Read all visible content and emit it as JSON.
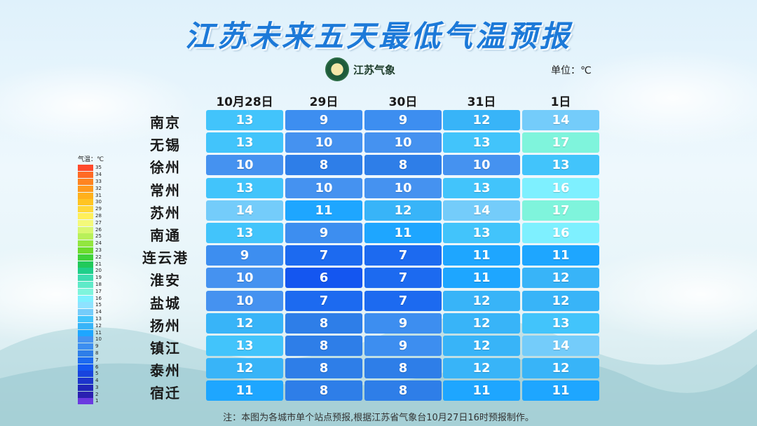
{
  "title": "江苏未来五天最低气温预报",
  "logo_text": "江苏气象",
  "unit_label": "单位：℃",
  "columns": [
    "10月28日",
    "29日",
    "30日",
    "31日",
    "1日"
  ],
  "rows": [
    {
      "city": "南京",
      "values": [
        13,
        9,
        9,
        12,
        14
      ]
    },
    {
      "city": "无锡",
      "values": [
        13,
        10,
        10,
        13,
        17
      ]
    },
    {
      "city": "徐州",
      "values": [
        10,
        8,
        8,
        10,
        13
      ]
    },
    {
      "city": "常州",
      "values": [
        13,
        10,
        10,
        13,
        16
      ]
    },
    {
      "city": "苏州",
      "values": [
        14,
        11,
        12,
        14,
        17
      ]
    },
    {
      "city": "南通",
      "values": [
        13,
        9,
        11,
        13,
        16
      ]
    },
    {
      "city": "连云港",
      "values": [
        9,
        7,
        7,
        11,
        11
      ]
    },
    {
      "city": "淮安",
      "values": [
        10,
        6,
        7,
        11,
        12
      ]
    },
    {
      "city": "盐城",
      "values": [
        10,
        7,
        7,
        12,
        12
      ]
    },
    {
      "city": "扬州",
      "values": [
        12,
        8,
        9,
        12,
        13
      ]
    },
    {
      "city": "镇江",
      "values": [
        13,
        8,
        9,
        12,
        14
      ]
    },
    {
      "city": "泰州",
      "values": [
        12,
        8,
        8,
        12,
        12
      ]
    },
    {
      "city": "宿迁",
      "values": [
        11,
        8,
        8,
        11,
        11
      ]
    }
  ],
  "legend": {
    "title": "气温：℃",
    "items": [
      {
        "value": 35,
        "color": "#ff4a2c"
      },
      {
        "value": 34,
        "color": "#ff6a24"
      },
      {
        "value": 33,
        "color": "#ff8420"
      },
      {
        "value": 32,
        "color": "#ff9a1e"
      },
      {
        "value": 31,
        "color": "#ffb01c"
      },
      {
        "value": 30,
        "color": "#ffc422"
      },
      {
        "value": 29,
        "color": "#ffd83a"
      },
      {
        "value": 28,
        "color": "#fff05a"
      },
      {
        "value": 27,
        "color": "#f4f97a"
      },
      {
        "value": 26,
        "color": "#d8f770"
      },
      {
        "value": 25,
        "color": "#b8f05a"
      },
      {
        "value": 24,
        "color": "#92e640"
      },
      {
        "value": 23,
        "color": "#6cdc2c"
      },
      {
        "value": 22,
        "color": "#3fd23a"
      },
      {
        "value": 21,
        "color": "#22c95a"
      },
      {
        "value": 20,
        "color": "#1fcf8a"
      },
      {
        "value": 19,
        "color": "#3ddcb0"
      },
      {
        "value": 18,
        "color": "#5eeac8"
      },
      {
        "value": 17,
        "color": "#7ff4dc"
      },
      {
        "value": 16,
        "color": "#7ef0ff"
      },
      {
        "value": 15,
        "color": "#8ee2ff"
      },
      {
        "value": 14,
        "color": "#74ccfa"
      },
      {
        "value": 13,
        "color": "#42c4fb"
      },
      {
        "value": 12,
        "color": "#38b4f8"
      },
      {
        "value": 11,
        "color": "#1ea6ff"
      },
      {
        "value": 10,
        "color": "#4592f0"
      },
      {
        "value": 9,
        "color": "#3d8ef0"
      },
      {
        "value": 8,
        "color": "#2e7ee8"
      },
      {
        "value": 7,
        "color": "#1c6af0"
      },
      {
        "value": 6,
        "color": "#1456f0"
      },
      {
        "value": 5,
        "color": "#1844de"
      },
      {
        "value": 4,
        "color": "#1c34cc"
      },
      {
        "value": 3,
        "color": "#2026b8"
      },
      {
        "value": 2,
        "color": "#2a20b0"
      },
      {
        "value": 1,
        "color": "#6a3ae0"
      }
    ]
  },
  "note": "注：本图为各城市单个站点预报,根据江苏省气象台10月27日16时预报制作。"
}
